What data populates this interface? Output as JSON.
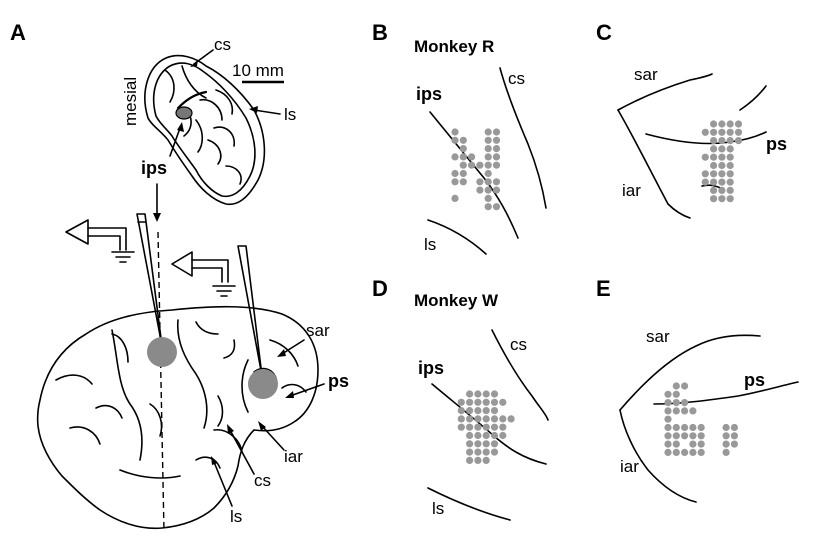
{
  "colors": {
    "dot": "#999999",
    "line": "#000000",
    "site": "#8a8a8a"
  },
  "panels": {
    "a": {
      "letter": "A",
      "labels": {
        "cs_top": "cs",
        "scale": "10 mm",
        "mesial": "mesial",
        "ls_top": "ls",
        "ips": "ips",
        "sar": "sar",
        "ps": "ps",
        "iar": "iar",
        "cs_bottom": "cs",
        "ls_bottom": "ls"
      }
    },
    "b": {
      "letter": "B",
      "title": "Monkey R",
      "labels": {
        "ips": "ips",
        "cs": "cs",
        "ls": "ls"
      }
    },
    "c": {
      "letter": "C",
      "labels": {
        "sar": "sar",
        "ps": "ps",
        "iar": "iar"
      }
    },
    "d": {
      "letter": "D",
      "title": "Monkey W",
      "labels": {
        "ips": "ips",
        "cs": "cs",
        "ls": "ls"
      }
    },
    "e": {
      "letter": "E",
      "labels": {
        "sar": "sar",
        "ps": "ps",
        "iar": "iar"
      }
    }
  }
}
